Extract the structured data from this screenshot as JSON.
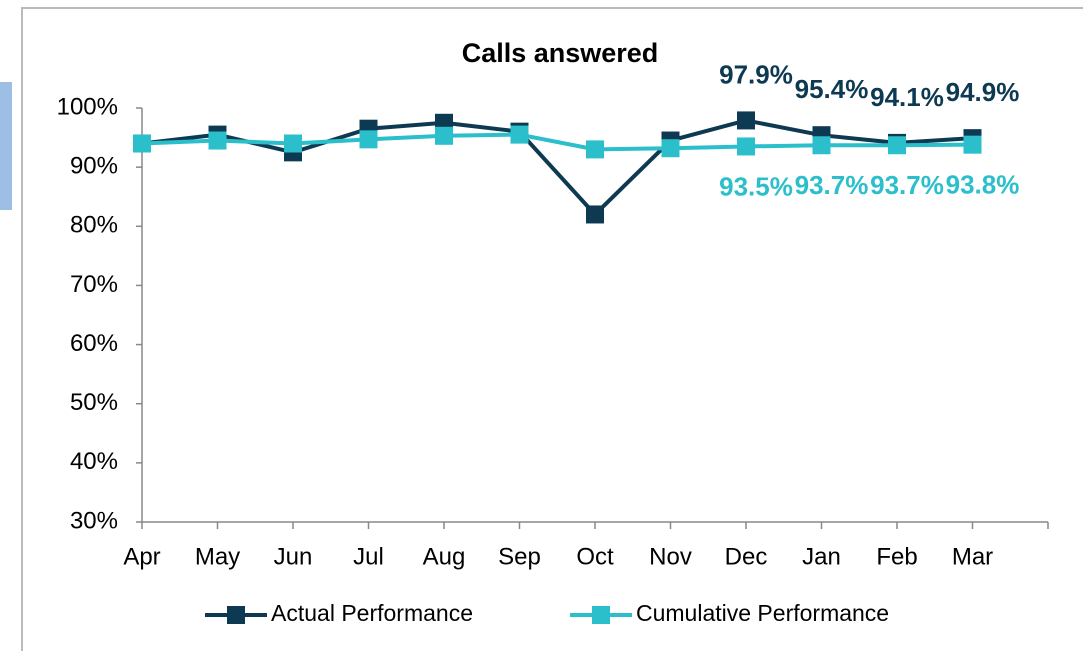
{
  "chart_data": {
    "type": "line",
    "title": "Calls answered",
    "categories": [
      "Apr",
      "May",
      "Jun",
      "Jul",
      "Aug",
      "Sep",
      "Oct",
      "Nov",
      "Dec",
      "Jan",
      "Feb",
      "Mar"
    ],
    "series": [
      {
        "name": "Actual Performance",
        "color": "#0d3a52",
        "values": [
          94,
          95.5,
          92.5,
          96.5,
          97.5,
          96,
          82,
          94.5,
          97.9,
          95.4,
          94.1,
          94.9
        ],
        "value_labels": [
          null,
          null,
          null,
          null,
          null,
          null,
          null,
          null,
          "97.9%",
          "95.4%",
          "94.1%",
          "94.9%"
        ]
      },
      {
        "name": "Cumulative Performance",
        "color": "#2bbfcc",
        "values": [
          94,
          94.5,
          94,
          94.7,
          95.3,
          95.5,
          93,
          93.2,
          93.5,
          93.7,
          93.7,
          93.8
        ],
        "value_labels": [
          null,
          null,
          null,
          null,
          null,
          null,
          null,
          null,
          "93.5%",
          "93.7%",
          "93.7%",
          "93.8%"
        ]
      }
    ],
    "ylim": [
      30,
      100
    ],
    "yticks": [
      {
        "value": 30,
        "label": "30%"
      },
      {
        "value": 40,
        "label": "40%"
      },
      {
        "value": 50,
        "label": "50%"
      },
      {
        "value": 60,
        "label": "60%"
      },
      {
        "value": 70,
        "label": "70%"
      },
      {
        "value": 80,
        "label": "80%"
      },
      {
        "value": 90,
        "label": "90%"
      },
      {
        "value": 100,
        "label": "100%"
      }
    ],
    "legend": "bottom"
  }
}
